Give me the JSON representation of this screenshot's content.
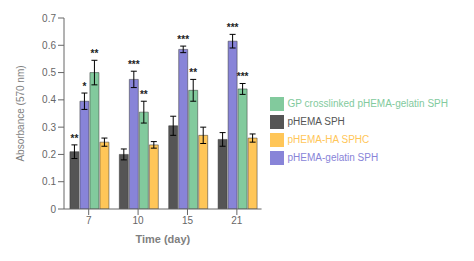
{
  "chart_data": {
    "type": "bar",
    "xlabel": "Time (day)",
    "ylabel": "Absorbance (570 nm)",
    "categories": [
      "7",
      "10",
      "15",
      "21"
    ],
    "series": [
      {
        "name": "pHEMA SPH",
        "color": "#555555",
        "values": [
          0.21,
          0.2,
          0.305,
          0.255
        ],
        "errors": [
          0.025,
          0.02,
          0.035,
          0.025
        ],
        "annotations": [
          "**",
          null,
          null,
          null
        ]
      },
      {
        "name": "pHEMA-gelatin SPH",
        "color": "#8884d8",
        "values": [
          0.395,
          0.475,
          0.585,
          0.615
        ],
        "errors": [
          0.03,
          0.03,
          0.012,
          0.025
        ],
        "annotations": [
          "*",
          "***",
          "***",
          "***"
        ]
      },
      {
        "name": "GP crosslinked pHEMA-gelatin SPH",
        "color": "#82ca9d",
        "values": [
          0.5,
          0.355,
          0.435,
          0.44
        ],
        "errors": [
          0.045,
          0.04,
          0.04,
          0.02
        ],
        "annotations": [
          "**",
          "**",
          "**",
          "***"
        ]
      },
      {
        "name": "pHEMA-HA SPHC",
        "color": "#ffc658",
        "values": [
          0.245,
          0.235,
          0.27,
          0.26
        ],
        "errors": [
          0.015,
          0.012,
          0.03,
          0.015
        ],
        "annotations": [
          null,
          null,
          null,
          null
        ]
      }
    ],
    "ylim": [
      0,
      0.7
    ],
    "yticks": [
      0,
      0.1,
      0.2,
      0.3,
      0.4,
      0.5,
      0.6,
      0.7
    ],
    "grid": false,
    "legend": "right"
  }
}
